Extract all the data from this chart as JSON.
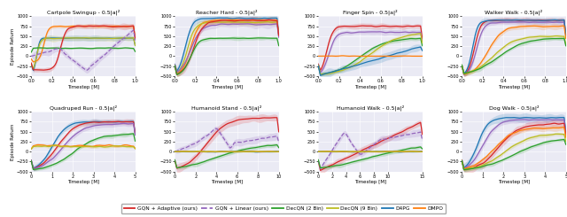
{
  "subplots": [
    {
      "title": "Cartpole Swingup - 0.5|a|²",
      "xlim": [
        0.0,
        1.0
      ],
      "ylim": [
        -500,
        1000
      ],
      "yticks": [
        -500,
        -250,
        0,
        250,
        500,
        750,
        1000
      ],
      "xticks": [
        0.0,
        0.2,
        0.4,
        0.6,
        0.8,
        1.0
      ],
      "xlabel": "Timestep [M]",
      "row": 0,
      "col": 0
    },
    {
      "title": "Reacher Hard - 0.5|a|²",
      "xlim": [
        0.0,
        1.0
      ],
      "ylim": [
        -500,
        1000
      ],
      "yticks": [
        -500,
        -250,
        0,
        250,
        500,
        750,
        1000
      ],
      "xticks": [
        0.0,
        0.2,
        0.4,
        0.6,
        0.8,
        1.0
      ],
      "xlabel": "Timestep [M]",
      "row": 0,
      "col": 1
    },
    {
      "title": "Finger Spin - 0.5|a|²",
      "xlim": [
        0.0,
        1.0
      ],
      "ylim": [
        -500,
        1000
      ],
      "yticks": [
        -500,
        -250,
        0,
        250,
        500,
        750,
        1000
      ],
      "xticks": [
        0.0,
        0.2,
        0.4,
        0.6,
        0.8,
        1.0
      ],
      "xlabel": "Timestep [M]",
      "row": 0,
      "col": 2
    },
    {
      "title": "Walker Walk - 0.5|a|²",
      "xlim": [
        0.0,
        1.0
      ],
      "ylim": [
        -500,
        1000
      ],
      "yticks": [
        -500,
        -250,
        0,
        250,
        500,
        750,
        1000
      ],
      "xticks": [
        0.0,
        0.2,
        0.4,
        0.6,
        0.8,
        1.0
      ],
      "xlabel": "Timestep [M]",
      "row": 0,
      "col": 3
    },
    {
      "title": "Quadruped Run - 0.5|a|²",
      "xlim": [
        0.0,
        5.0
      ],
      "ylim": [
        -500,
        1000
      ],
      "yticks": [
        -500,
        -250,
        0,
        250,
        500,
        750,
        1000
      ],
      "xticks": [
        0.0,
        1.0,
        2.0,
        3.0,
        4.0,
        5.0
      ],
      "xlabel": "Timestep [M]",
      "row": 1,
      "col": 0
    },
    {
      "title": "Humanoid Stand - 0.5|a|²",
      "xlim": [
        0.0,
        10.0
      ],
      "ylim": [
        -500,
        1000
      ],
      "yticks": [
        -500,
        -250,
        0,
        250,
        500,
        750,
        1000
      ],
      "xticks": [
        0.0,
        2.0,
        4.0,
        6.0,
        8.0,
        10.0
      ],
      "xlabel": "Timestep [M]",
      "row": 1,
      "col": 1
    },
    {
      "title": "Humanoid Walk - 0.5|a|²",
      "xlim": [
        0.0,
        15.0
      ],
      "ylim": [
        -500,
        1000
      ],
      "yticks": [
        -500,
        -250,
        0,
        250,
        500,
        750,
        1000
      ],
      "xticks": [
        0.0,
        2.0,
        4.0,
        6.0,
        8.0,
        10.0,
        15.0
      ],
      "xlabel": "Timestep [M]",
      "row": 1,
      "col": 2
    },
    {
      "title": "Dog Walk - 0.5|a|²",
      "xlim": [
        0.0,
        5.0
      ],
      "ylim": [
        -500,
        1000
      ],
      "yticks": [
        -500,
        -250,
        0,
        250,
        500,
        750,
        1000
      ],
      "xticks": [
        0.0,
        1.0,
        2.0,
        3.0,
        4.0,
        5.0
      ],
      "xlabel": "Timestep [M]",
      "row": 1,
      "col": 3
    }
  ],
  "colors": {
    "GQN_adaptive": "#d62728",
    "GQN_linear": "#9467bd",
    "DecQN_2": "#2ca02c",
    "DecQN_9": "#bcbd22",
    "D4PG": "#1f77b4",
    "DMPO": "#ff7f0e"
  },
  "legend_entries": [
    {
      "label": "GQN + Adaptive (ours)",
      "color": "#d62728",
      "linestyle": "-"
    },
    {
      "label": "GQN + Linear (ours)",
      "color": "#9467bd",
      "linestyle": "--"
    },
    {
      "label": "DecQN (2 Bin)",
      "color": "#2ca02c",
      "linestyle": "-"
    },
    {
      "label": "DecQN (9 Bin)",
      "color": "#bcbd22",
      "linestyle": "-"
    },
    {
      "label": "D4PG",
      "color": "#1f77b4",
      "linestyle": "-"
    },
    {
      "label": "DMPO",
      "color": "#ff7f0e",
      "linestyle": "-"
    }
  ],
  "bg_color": "#eaeaf4",
  "fig_bg": "#ffffff",
  "grid_color": "#ffffff"
}
